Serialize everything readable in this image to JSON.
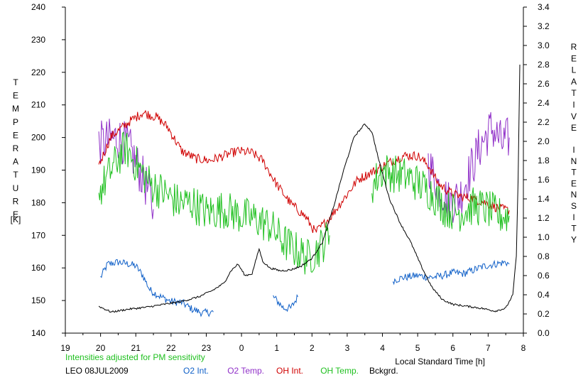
{
  "chart_data": {
    "type": "line",
    "left_axis_label": [
      "T",
      "E",
      "M",
      "P",
      "E",
      "R",
      "A",
      "T",
      "U",
      "R",
      "E"
    ],
    "left_axis_unit": "[K]",
    "right_axis_label_1": [
      "R",
      "E",
      "L",
      "A",
      "T",
      "I",
      "V",
      "E"
    ],
    "right_axis_label_2": [
      "I",
      "N",
      "T",
      "E",
      "N",
      "S",
      "I",
      "T",
      "Y"
    ],
    "xlabel": "Local Standard Time [h]",
    "note": "Intensities adjusted for PM sensitivity",
    "site_date": "LEO 08JUL2009",
    "x_tick_labels": [
      "19",
      "20",
      "21",
      "22",
      "23",
      "0",
      "1",
      "2",
      "3",
      "4",
      "5",
      "6",
      "7",
      "8"
    ],
    "xlim": [
      19,
      32
    ],
    "ylim_left": [
      140,
      240
    ],
    "left_ticks": [
      140,
      150,
      160,
      170,
      180,
      190,
      200,
      210,
      220,
      230,
      240
    ],
    "ylim_right": [
      0.0,
      3.4
    ],
    "right_ticks": [
      "0.0",
      "0.2",
      "0.4",
      "0.6",
      "0.8",
      "1.0",
      "1.2",
      "1.4",
      "1.6",
      "1.8",
      "2.0",
      "2.2",
      "2.4",
      "2.6",
      "2.8",
      "3.0",
      "3.2",
      "3.4"
    ],
    "grid": false,
    "legend_position": "bottom",
    "series": [
      {
        "name": "O2 Int.",
        "axis": "right",
        "color": "#1060c8",
        "noise": 0.04,
        "segments": [
          [
            [
              20.0,
              0.58
            ],
            [
              20.2,
              0.72
            ],
            [
              20.5,
              0.74
            ],
            [
              20.8,
              0.72
            ],
            [
              21.0,
              0.7
            ],
            [
              21.2,
              0.6
            ],
            [
              21.4,
              0.45
            ],
            [
              21.7,
              0.38
            ],
            [
              22.0,
              0.33
            ],
            [
              22.3,
              0.32
            ],
            [
              22.6,
              0.25
            ],
            [
              22.9,
              0.21
            ],
            [
              23.2,
              0.22
            ]
          ],
          [
            [
              24.9,
              0.38
            ],
            [
              25.2,
              0.26
            ],
            [
              25.4,
              0.26
            ],
            [
              25.6,
              0.38
            ]
          ],
          [
            [
              28.3,
              0.55
            ],
            [
              28.6,
              0.58
            ],
            [
              29.0,
              0.6
            ],
            [
              29.4,
              0.58
            ],
            [
              29.7,
              0.6
            ],
            [
              30.0,
              0.63
            ],
            [
              30.3,
              0.62
            ],
            [
              30.6,
              0.66
            ],
            [
              30.9,
              0.7
            ],
            [
              31.2,
              0.72
            ],
            [
              31.5,
              0.74
            ],
            [
              31.6,
              0.72
            ]
          ]
        ]
      },
      {
        "name": "O2 Temp.",
        "axis": "left",
        "color": "#9030c8",
        "noise": 7,
        "segments": [
          [
            [
              19.95,
              198
            ],
            [
              20.2,
              199
            ],
            [
              20.5,
              200
            ],
            [
              20.8,
              197
            ],
            [
              21.1,
              190
            ],
            [
              21.3,
              185
            ],
            [
              21.5,
              178
            ]
          ],
          [
            [
              29.3,
              192
            ],
            [
              29.6,
              185
            ],
            [
              29.9,
              180
            ],
            [
              30.2,
              182
            ],
            [
              30.5,
              190
            ],
            [
              30.8,
              198
            ],
            [
              31.1,
              203
            ],
            [
              31.4,
              198
            ],
            [
              31.6,
              200
            ]
          ]
        ]
      },
      {
        "name": "OH Int.",
        "axis": "right",
        "color": "#d00000",
        "noise": 0.05,
        "segments": [
          [
            [
              19.95,
              1.75
            ],
            [
              20.3,
              2.05
            ],
            [
              20.8,
              2.2
            ],
            [
              21.2,
              2.3
            ],
            [
              21.6,
              2.25
            ],
            [
              21.9,
              2.15
            ],
            [
              22.3,
              1.9
            ],
            [
              22.7,
              1.82
            ],
            [
              23.1,
              1.8
            ],
            [
              23.5,
              1.85
            ],
            [
              23.9,
              1.9
            ],
            [
              24.3,
              1.88
            ],
            [
              24.6,
              1.8
            ],
            [
              25.0,
              1.55
            ],
            [
              25.4,
              1.35
            ],
            [
              25.8,
              1.22
            ],
            [
              26.1,
              1.05
            ],
            [
              26.5,
              1.2
            ],
            [
              26.9,
              1.4
            ],
            [
              27.3,
              1.6
            ],
            [
              27.8,
              1.7
            ],
            [
              28.2,
              1.78
            ],
            [
              28.6,
              1.85
            ],
            [
              29.0,
              1.85
            ],
            [
              29.3,
              1.75
            ],
            [
              29.6,
              1.55
            ],
            [
              30.0,
              1.45
            ],
            [
              30.3,
              1.42
            ],
            [
              30.6,
              1.4
            ],
            [
              31.0,
              1.35
            ],
            [
              31.3,
              1.3
            ],
            [
              31.6,
              1.28
            ]
          ]
        ]
      },
      {
        "name": "OH Temp.",
        "axis": "left",
        "color": "#20c020",
        "noise": 6,
        "segments": [
          [
            [
              19.95,
              183
            ],
            [
              20.3,
              190
            ],
            [
              20.7,
              197
            ],
            [
              21.0,
              192
            ],
            [
              21.4,
              186
            ],
            [
              21.8,
              183
            ],
            [
              22.2,
              180
            ],
            [
              22.6,
              180
            ],
            [
              23.0,
              177
            ],
            [
              23.5,
              178
            ],
            [
              24.0,
              176
            ],
            [
              24.4,
              175
            ],
            [
              24.8,
              173
            ],
            [
              25.2,
              168
            ],
            [
              25.6,
              165
            ],
            [
              25.9,
              163
            ],
            [
              26.2,
              166
            ],
            [
              26.5,
              170
            ]
          ],
          [
            [
              27.7,
              185
            ],
            [
              28.0,
              190
            ],
            [
              28.3,
              189
            ],
            [
              28.7,
              188
            ],
            [
              29.0,
              186
            ],
            [
              29.4,
              183
            ],
            [
              29.8,
              178
            ],
            [
              30.2,
              177
            ],
            [
              30.6,
              179
            ],
            [
              31.0,
              178
            ],
            [
              31.3,
              176
            ],
            [
              31.6,
              176
            ]
          ]
        ]
      },
      {
        "name": "Bckgrd.",
        "axis": "right",
        "color": "#000000",
        "noise": 0.01,
        "segments": [
          [
            [
              19.95,
              0.28
            ],
            [
              20.3,
              0.22
            ],
            [
              20.8,
              0.25
            ],
            [
              21.3,
              0.27
            ],
            [
              21.8,
              0.3
            ],
            [
              22.3,
              0.33
            ],
            [
              22.8,
              0.38
            ],
            [
              23.2,
              0.45
            ],
            [
              23.5,
              0.52
            ],
            [
              23.7,
              0.65
            ],
            [
              23.9,
              0.72
            ],
            [
              24.1,
              0.6
            ],
            [
              24.3,
              0.62
            ],
            [
              24.5,
              0.88
            ],
            [
              24.6,
              0.75
            ],
            [
              24.8,
              0.68
            ],
            [
              25.1,
              0.65
            ],
            [
              25.4,
              0.66
            ],
            [
              25.7,
              0.7
            ],
            [
              26.0,
              0.78
            ],
            [
              26.3,
              0.95
            ],
            [
              26.6,
              1.3
            ],
            [
              26.9,
              1.7
            ],
            [
              27.2,
              2.05
            ],
            [
              27.5,
              2.18
            ],
            [
              27.7,
              2.1
            ],
            [
              27.9,
              1.8
            ],
            [
              28.2,
              1.4
            ],
            [
              28.5,
              1.15
            ],
            [
              28.8,
              0.95
            ],
            [
              29.1,
              0.7
            ],
            [
              29.4,
              0.48
            ],
            [
              29.7,
              0.35
            ],
            [
              30.0,
              0.3
            ],
            [
              30.4,
              0.28
            ],
            [
              30.8,
              0.26
            ],
            [
              31.2,
              0.23
            ],
            [
              31.5,
              0.26
            ],
            [
              31.7,
              0.4
            ],
            [
              31.8,
              0.8
            ],
            [
              31.85,
              1.6
            ],
            [
              31.9,
              2.8
            ]
          ]
        ]
      }
    ]
  }
}
